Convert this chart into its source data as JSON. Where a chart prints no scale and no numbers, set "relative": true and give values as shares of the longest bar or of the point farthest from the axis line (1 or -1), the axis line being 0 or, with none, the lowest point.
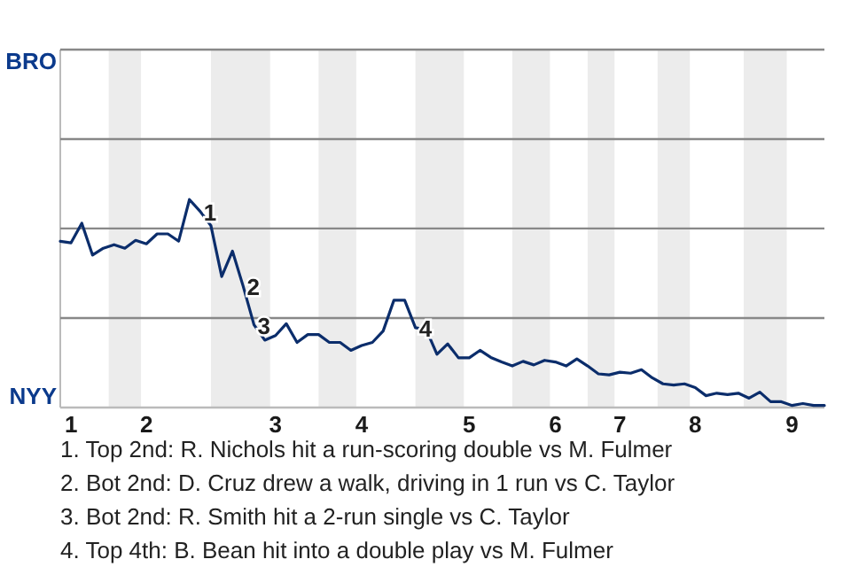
{
  "chart_data": {
    "type": "line",
    "relative": true,
    "categories": [
      null,
      "1",
      null,
      null,
      null,
      null,
      null,
      null,
      "2",
      null,
      null,
      null,
      null,
      null,
      null,
      null,
      null,
      null,
      null,
      null,
      "3",
      null,
      null,
      null,
      null,
      null,
      null,
      null,
      "4",
      null,
      null,
      null,
      null,
      null,
      null,
      null,
      null,
      null,
      "5",
      null,
      null,
      null,
      null,
      null,
      null,
      null,
      "6",
      null,
      null,
      null,
      null,
      null,
      "7",
      null,
      null,
      null,
      null,
      null,
      null,
      "8",
      null,
      null,
      null,
      null,
      null,
      null,
      null,
      null,
      "9",
      null,
      null,
      null
    ],
    "series": [
      {
        "color": "#0b2d6b",
        "values": [
          0.799,
          0.792,
          0.886,
          0.733,
          0.766,
          0.783,
          0.766,
          0.804,
          0.787,
          0.835,
          0.835,
          0.8,
          1,
          0.943,
          0.874,
          0.63,
          0.752,
          0.582,
          0.398,
          0.324,
          0.346,
          0.403,
          0.313,
          0.351,
          0.351,
          0.313,
          0.313,
          0.275,
          0.298,
          0.313,
          0.368,
          0.516,
          0.516,
          0.384,
          0.375,
          0.256,
          0.306,
          0.239,
          0.239,
          0.275,
          0.241,
          0.219,
          0.2,
          0.222,
          0.205,
          0.227,
          0.219,
          0.2,
          0.234,
          0.2,
          0.162,
          0.157,
          0.17,
          0.165,
          0.182,
          0.143,
          0.114,
          0.108,
          0.114,
          0.096,
          0.057,
          0.069,
          0.062,
          0.069,
          0.045,
          0.074,
          0.028,
          0.028,
          0.01,
          0.019,
          0.01,
          0.01
        ]
      }
    ],
    "marker": "none",
    "line_style": "solid",
    "ylabel": "NYY",
    "ref_lines": [
      {
        "axis": "y",
        "value": 0.43,
        "label": null,
        "color": "#888888"
      },
      {
        "axis": "y",
        "value": 0.861,
        "label": null,
        "color": "#888888"
      },
      {
        "axis": "y",
        "value": 1.291,
        "label": null,
        "color": "#888888"
      },
      {
        "axis": "y",
        "value": 1.721,
        "label": "BRO",
        "color": "#888888"
      }
    ],
    "annotations": [
      {
        "text": "1",
        "y": 0.943
      },
      {
        "text": "2",
        "y": 0.582
      },
      {
        "text": "3",
        "y": 0.398
      },
      {
        "text": "4",
        "y": 0.384
      },
      "1. Top 2nd: R. Nichols hit a run-scoring double vs M. Fulmer",
      "2. Bot 2nd: D. Cruz drew a walk, driving in 1 run vs C. Taylor",
      "3. Bot 2nd: R. Smith hit a 2-run single vs C. Taylor",
      "4. Top 4th: B. Bean hit into a double play vs M. Fulmer"
    ]
  }
}
